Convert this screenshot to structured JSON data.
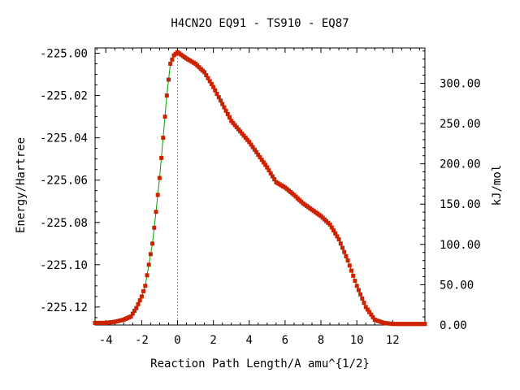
{
  "chart_data": {
    "type": "line",
    "title": "H4CN2O   EQ91 - TS910 - EQ87",
    "xlabel": "Reaction Path Length/A amu^{1/2}",
    "ylabel": "Energy/Hartree",
    "y2label": "kJ/mol",
    "xlim": [
      -4.6,
      13.8
    ],
    "ylim": [
      -225.1285,
      -224.9975
    ],
    "y2lim": [
      0,
      343.8
    ],
    "xticks": [
      "-4",
      "-2",
      "0",
      "2",
      "4",
      "6",
      "8",
      "10",
      "12"
    ],
    "xtick_values": [
      -4,
      -2,
      0,
      2,
      4,
      6,
      8,
      10,
      12
    ],
    "yticks": [
      "-225.00",
      "-225.02",
      "-225.04",
      "-225.06",
      "-225.08",
      "-225.10",
      "-225.12"
    ],
    "ytick_values": [
      -225.0,
      -225.02,
      -225.04,
      -225.06,
      -225.08,
      -225.1,
      -225.12
    ],
    "y2ticks": [
      "0.00",
      "50.00",
      "100.00",
      "150.00",
      "200.00",
      "250.00",
      "300.00"
    ],
    "y2tick_values": [
      0,
      50,
      100,
      150,
      200,
      250,
      300
    ],
    "ts_marker_x": 0,
    "line_color": "#00a000",
    "point_color": "#cc2200",
    "series": [
      {
        "values": [
          {
            "x": -4.6,
            "y": -225.1275
          },
          {
            "x": -4.0,
            "y": -225.1275
          },
          {
            "x": -3.5,
            "y": -225.127
          },
          {
            "x": -3.0,
            "y": -225.126
          },
          {
            "x": -2.6,
            "y": -225.1245
          },
          {
            "x": -2.3,
            "y": -225.1205
          },
          {
            "x": -2.0,
            "y": -225.115
          },
          {
            "x": -1.8,
            "y": -225.11
          },
          {
            "x": -1.6,
            "y": -225.1
          },
          {
            "x": -1.4,
            "y": -225.09
          },
          {
            "x": -1.2,
            "y": -225.075
          },
          {
            "x": -1.0,
            "y": -225.059
          },
          {
            "x": -0.8,
            "y": -225.04
          },
          {
            "x": -0.6,
            "y": -225.02
          },
          {
            "x": -0.4,
            "y": -225.005
          },
          {
            "x": -0.2,
            "y": -225.001
          },
          {
            "x": 0.0,
            "y": -224.9995
          },
          {
            "x": 0.5,
            "y": -225.0025
          },
          {
            "x": 1.0,
            "y": -225.005
          },
          {
            "x": 1.5,
            "y": -225.009
          },
          {
            "x": 2.0,
            "y": -225.016
          },
          {
            "x": 2.5,
            "y": -225.024
          },
          {
            "x": 3.0,
            "y": -225.032
          },
          {
            "x": 3.5,
            "y": -225.037
          },
          {
            "x": 4.0,
            "y": -225.042
          },
          {
            "x": 4.5,
            "y": -225.048
          },
          {
            "x": 5.0,
            "y": -225.054
          },
          {
            "x": 5.5,
            "y": -225.061
          },
          {
            "x": 6.0,
            "y": -225.0635
          },
          {
            "x": 6.5,
            "y": -225.067
          },
          {
            "x": 7.0,
            "y": -225.071
          },
          {
            "x": 7.5,
            "y": -225.074
          },
          {
            "x": 8.0,
            "y": -225.077
          },
          {
            "x": 8.5,
            "y": -225.081
          },
          {
            "x": 9.0,
            "y": -225.088
          },
          {
            "x": 9.5,
            "y": -225.098
          },
          {
            "x": 10.0,
            "y": -225.11
          },
          {
            "x": 10.5,
            "y": -225.12
          },
          {
            "x": 11.0,
            "y": -225.126
          },
          {
            "x": 11.5,
            "y": -225.1275
          },
          {
            "x": 12.0,
            "y": -225.128
          },
          {
            "x": 13.0,
            "y": -225.128
          },
          {
            "x": 13.8,
            "y": -225.128
          }
        ]
      }
    ]
  }
}
